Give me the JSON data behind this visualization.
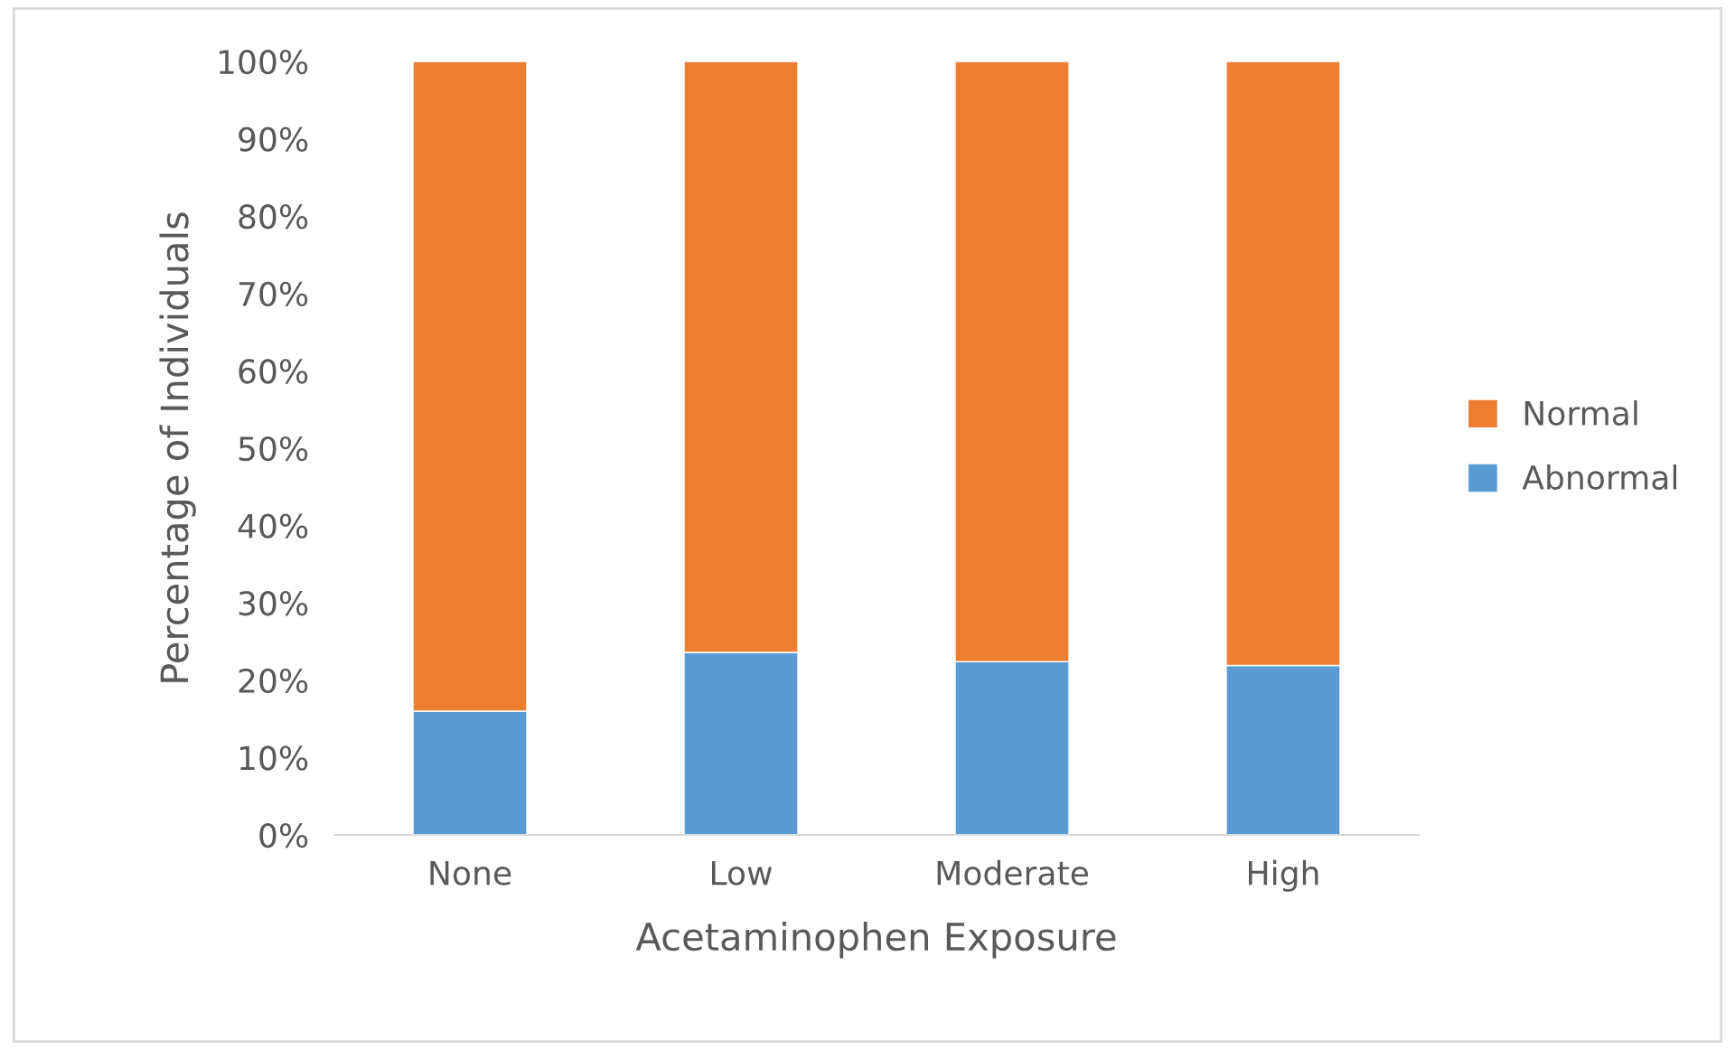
{
  "chart_data": {
    "type": "bar",
    "stacked": true,
    "xlabel": "Acetaminophen Exposure",
    "ylabel": "Percentage of Individuals",
    "categories": [
      "None",
      "Low",
      "Moderate",
      "High"
    ],
    "series": [
      {
        "name": "Abnormal",
        "color": "#5b9bd5",
        "values": [
          16,
          23.6,
          22.4,
          21.9
        ]
      },
      {
        "name": "Normal",
        "color": "#ed7d31",
        "values": [
          84,
          76.4,
          77.6,
          78.1
        ]
      }
    ],
    "ylim": [
      0,
      100
    ],
    "yticks": [
      {
        "value": 0,
        "label": "0%"
      },
      {
        "value": 10,
        "label": "10%"
      },
      {
        "value": 20,
        "label": "20%"
      },
      {
        "value": 30,
        "label": "30%"
      },
      {
        "value": 40,
        "label": "40%"
      },
      {
        "value": 50,
        "label": "50%"
      },
      {
        "value": 60,
        "label": "60%"
      },
      {
        "value": 70,
        "label": "70%"
      },
      {
        "value": 80,
        "label": "80%"
      },
      {
        "value": 90,
        "label": "90%"
      },
      {
        "value": 100,
        "label": "100%"
      }
    ],
    "grid": false,
    "legend": "right"
  }
}
